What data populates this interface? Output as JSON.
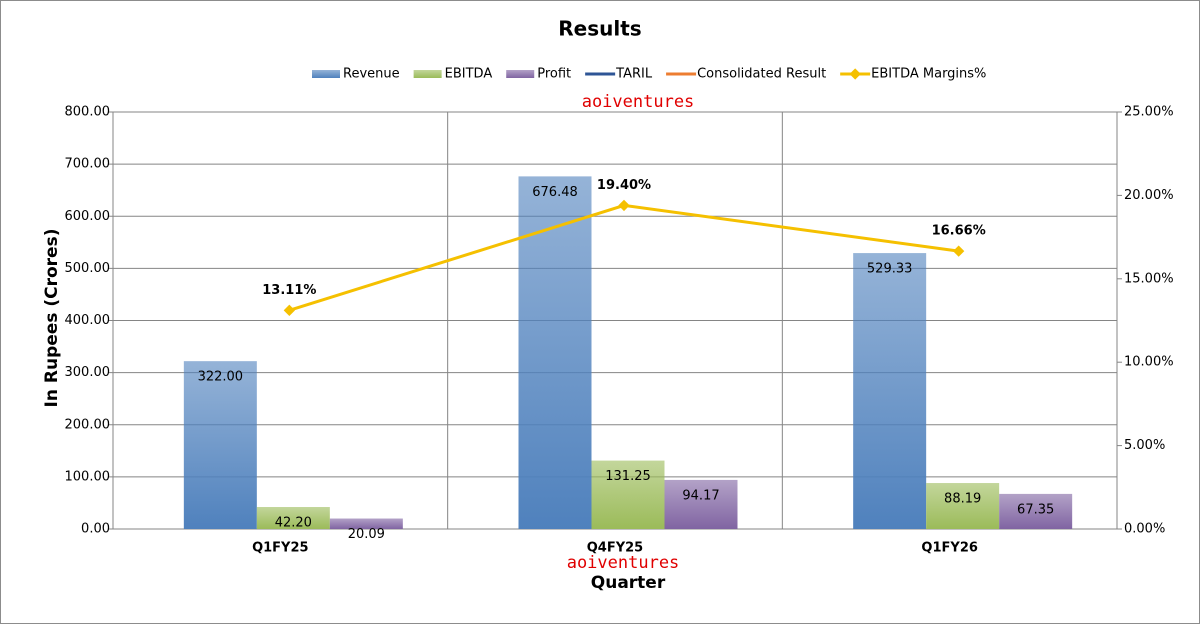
{
  "chart_data": {
    "type": "bar",
    "title": "Results",
    "x_label": "Quarter",
    "y_label": "In Rupees (Crores)",
    "annotations": [
      "aoiventures",
      "aoiventures"
    ],
    "categories": [
      "Q1FY25",
      "Q4FY25",
      "Q1FY26"
    ],
    "series": [
      {
        "name": "Revenue",
        "color": "#4f81bd",
        "values": [
          322,
          676.48,
          529.33
        ],
        "value_labels": [
          "322.00",
          "676.48",
          "529.33"
        ]
      },
      {
        "name": "EBITDA",
        "color": "#9bbb59",
        "values": [
          42.2,
          131.25,
          88.19
        ],
        "value_labels": [
          "42.20",
          "131.25",
          "88.19"
        ]
      },
      {
        "name": "Profit",
        "color": "#8064a2",
        "values": [
          20.09,
          94.17,
          67.35
        ],
        "value_labels": [
          "20.09",
          "94.17",
          "67.35"
        ]
      },
      {
        "name": "TARIL",
        "color": "#2e5596",
        "values": [
          null,
          null,
          null
        ]
      },
      {
        "name": "Consolidated Result",
        "color": "#ed7d31",
        "values": [
          null,
          null,
          null
        ]
      },
      {
        "name": "EBITDA Margins%",
        "color": "#f5c000",
        "type": "line",
        "axis": "y2",
        "values": [
          13.11,
          19.4,
          16.66
        ],
        "value_labels": [
          "13.11%",
          "19.40%",
          "16.66%"
        ]
      }
    ],
    "ylim": [
      0,
      800
    ],
    "yticks": [
      {
        "value": 0,
        "label": "0.00"
      },
      {
        "value": 100,
        "label": "100.00"
      },
      {
        "value": 200,
        "label": "200.00"
      },
      {
        "value": 300,
        "label": "300.00"
      },
      {
        "value": 400,
        "label": "400.00"
      },
      {
        "value": 500,
        "label": "500.00"
      },
      {
        "value": 600,
        "label": "600.00"
      },
      {
        "value": 700,
        "label": "700.00"
      },
      {
        "value": 800,
        "label": "800.00"
      }
    ],
    "y2lim": [
      0,
      25
    ],
    "y2ticks": [
      {
        "value": 0,
        "label": "0.00%"
      },
      {
        "value": 5,
        "label": "5.00%"
      },
      {
        "value": 10,
        "label": "10.00%"
      },
      {
        "value": 15,
        "label": "15.00%"
      },
      {
        "value": 20,
        "label": "20.00%"
      },
      {
        "value": 25,
        "label": "25.00%"
      }
    ],
    "grid": true,
    "legend": "top"
  }
}
